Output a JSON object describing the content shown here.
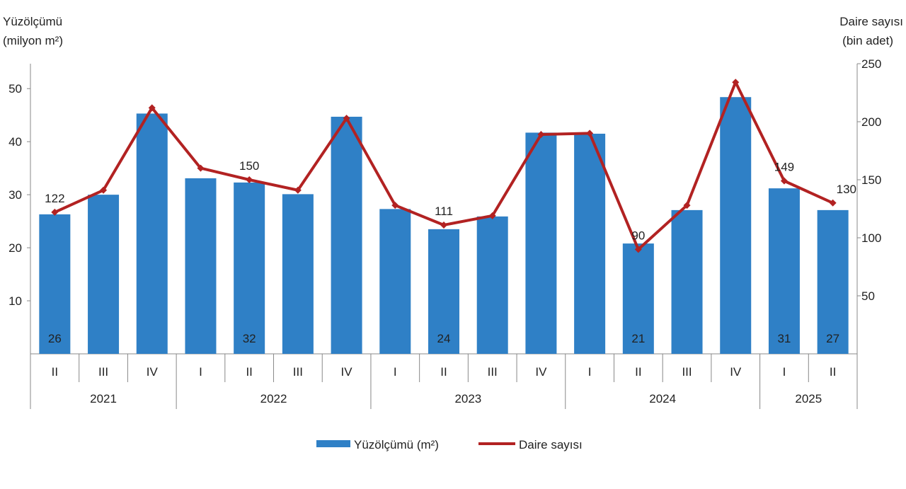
{
  "chart_data": {
    "type": "bar+line",
    "left_axis": {
      "label_line1": "Yüzölçümü",
      "label_line2": "(milyon m²)",
      "ylim": [
        0,
        54.7
      ],
      "ticks": [
        10,
        20,
        30,
        40,
        50
      ]
    },
    "right_axis": {
      "label_line1": "Daire sayısı",
      "label_line2": "(bin adet)",
      "ylim": [
        0,
        250
      ],
      "ticks": [
        50,
        100,
        150,
        200,
        250
      ]
    },
    "categories": [
      "II",
      "III",
      "IV",
      "I",
      "II",
      "III",
      "IV",
      "I",
      "II",
      "III",
      "IV",
      "I",
      "II",
      "III",
      "IV",
      "I",
      "II"
    ],
    "years": [
      {
        "label": "2021",
        "count": 3
      },
      {
        "label": "2022",
        "count": 4
      },
      {
        "label": "2023",
        "count": 4
      },
      {
        "label": "2024",
        "count": 4
      },
      {
        "label": "2025",
        "count": 2
      }
    ],
    "series": [
      {
        "name": "Yüzölçümü (m²)",
        "kind": "bar",
        "axis": "left",
        "color": "#2f80c6",
        "values": [
          26.3,
          30.0,
          45.3,
          33.1,
          32.3,
          30.1,
          44.7,
          27.3,
          23.5,
          25.9,
          41.7,
          41.5,
          20.8,
          27.1,
          48.4,
          31.2,
          27.1
        ],
        "data_labels": [
          "26",
          null,
          null,
          null,
          "32",
          null,
          null,
          null,
          "24",
          null,
          null,
          null,
          "21",
          null,
          null,
          "31",
          "27"
        ]
      },
      {
        "name": "Daire sayısı",
        "kind": "line",
        "axis": "right",
        "color": "#b22222",
        "values": [
          122,
          141,
          212,
          160,
          150,
          141,
          203,
          128,
          111,
          119,
          189,
          190,
          90,
          128,
          234,
          149,
          130
        ],
        "data_labels": [
          "122",
          null,
          null,
          null,
          "150",
          null,
          null,
          null,
          "111",
          null,
          null,
          null,
          "90",
          null,
          null,
          "149",
          "130"
        ]
      }
    ],
    "grid": false,
    "legend": "bottom-center"
  }
}
